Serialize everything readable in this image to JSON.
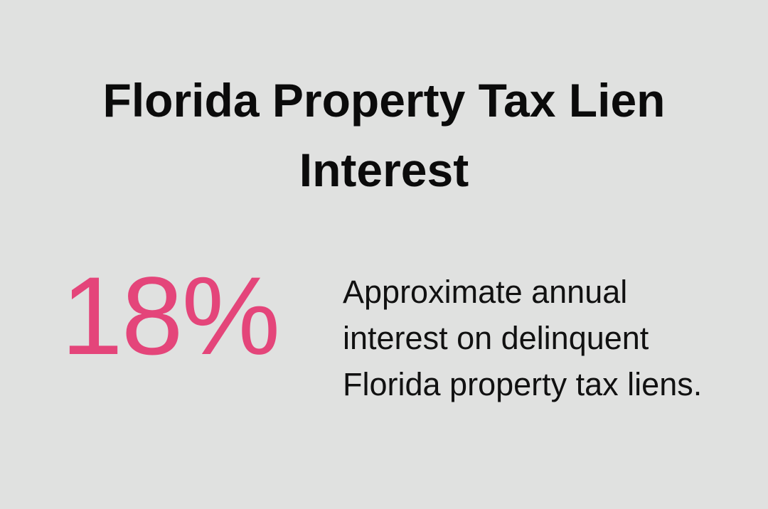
{
  "header": {
    "title": "Florida Property Tax Lien Interest"
  },
  "stat": {
    "value": "18%",
    "description": "Approximate annual interest on delinquent Florida property tax liens."
  }
}
